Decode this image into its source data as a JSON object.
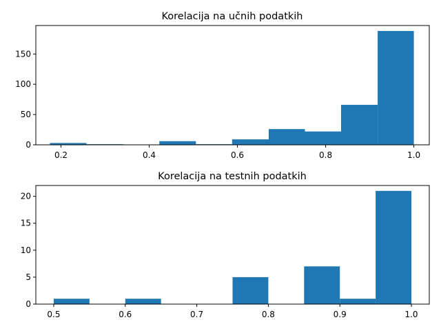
{
  "colors": {
    "bar": "#1f77b4",
    "axis": "#000000",
    "background": "#ffffff"
  },
  "chart_data": [
    {
      "type": "histogram",
      "title": "Korelacija na učnih podatkih",
      "xlabel": "",
      "ylabel": "",
      "xlim": [
        0.143,
        1.035
      ],
      "ylim": [
        0,
        197
      ],
      "xticks": [
        0.2,
        0.4,
        0.6,
        0.8,
        1.0
      ],
      "xtick_labels": [
        "0.2",
        "0.4",
        "0.6",
        "0.8",
        "1.0"
      ],
      "yticks": [
        0,
        50,
        100,
        150
      ],
      "ytick_labels": [
        "0",
        "50",
        "100",
        "150"
      ],
      "bin_edges": [
        0.175,
        0.258,
        0.341,
        0.423,
        0.506,
        0.588,
        0.671,
        0.753,
        0.835,
        0.918,
        1.0
      ],
      "values": [
        3,
        1,
        0,
        6,
        1,
        9,
        26,
        22,
        66,
        188
      ]
    },
    {
      "type": "histogram",
      "title": "Korelacija na testnih podatkih",
      "xlabel": "",
      "ylabel": "",
      "xlim": [
        0.475,
        1.025
      ],
      "ylim": [
        0,
        22
      ],
      "xticks": [
        0.5,
        0.6,
        0.7,
        0.8,
        0.9,
        1.0
      ],
      "xtick_labels": [
        "0.5",
        "0.6",
        "0.7",
        "0.8",
        "0.9",
        "1.0"
      ],
      "yticks": [
        0,
        5,
        10,
        15,
        20
      ],
      "ytick_labels": [
        "0",
        "5",
        "10",
        "15",
        "20"
      ],
      "bin_edges": [
        0.5,
        0.55,
        0.6,
        0.65,
        0.7,
        0.75,
        0.8,
        0.85,
        0.9,
        0.95,
        1.0
      ],
      "values": [
        1,
        0,
        1,
        0,
        0,
        5,
        0,
        7,
        1,
        21
      ]
    }
  ]
}
